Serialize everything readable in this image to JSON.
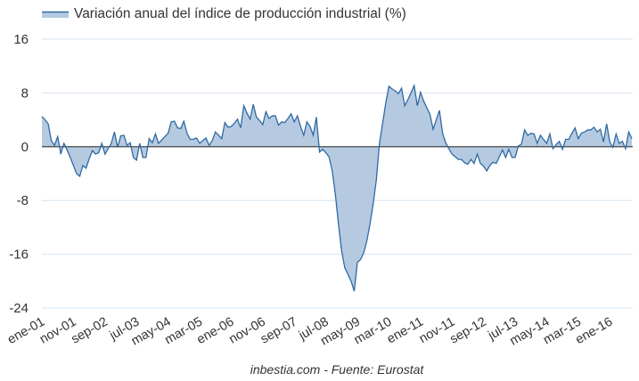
{
  "chart_data": {
    "type": "area",
    "title": "",
    "legend": {
      "label": "Variación anual del índice de producción industrial (%)",
      "position": "top-left"
    },
    "credit": "inbestia.com - Fuente: Eurostat",
    "xlabel": "",
    "ylabel": "",
    "ylim": [
      -24,
      16
    ],
    "yticks": [
      16,
      8,
      0,
      -8,
      -16,
      -24
    ],
    "grid": true,
    "start_month": "ene-01",
    "frequency": "monthly",
    "xtick_labels": [
      "ene-01",
      "nov-01",
      "sep-02",
      "jul-03",
      "may-04",
      "mar-05",
      "ene-06",
      "nov-06",
      "sep-07",
      "jul-08",
      "may-09",
      "mar-10",
      "ene-11",
      "nov-11",
      "sep-12",
      "jul-13",
      "may-14",
      "mar-15",
      "ene-16"
    ],
    "xtick_every_months": 10,
    "colors": {
      "line": "#2f6aa3",
      "fill": "#b5cae0",
      "grid": "#d5e3f0",
      "zero": "#333333"
    },
    "values": [
      4.5,
      4.0,
      3.4,
      0.9,
      0.2,
      1.5,
      -1.1,
      0.5,
      -0.5,
      -1.6,
      -2.8,
      -4.0,
      -4.4,
      -2.8,
      -3.2,
      -1.8,
      -0.6,
      -1.1,
      -0.9,
      0.5,
      -1.1,
      -0.3,
      0.5,
      2.2,
      -0.1,
      1.6,
      1.7,
      0.2,
      0.6,
      -1.6,
      -2.0,
      0.5,
      -1.6,
      -1.6,
      1.2,
      0.6,
      1.9,
      0.5,
      1.0,
      1.5,
      2.0,
      3.7,
      3.8,
      2.8,
      2.7,
      3.8,
      2.0,
      1.1,
      1.1,
      1.3,
      0.5,
      0.9,
      1.3,
      0.2,
      0.9,
      2.2,
      1.7,
      1.2,
      3.6,
      2.9,
      3.0,
      3.5,
      4.1,
      2.8,
      6.1,
      5.0,
      4.1,
      6.3,
      4.4,
      3.9,
      3.3,
      5.2,
      4.2,
      4.6,
      4.6,
      3.2,
      3.7,
      3.6,
      4.2,
      4.9,
      3.7,
      4.6,
      3.0,
      1.7,
      3.7,
      3.0,
      1.7,
      4.4,
      -0.8,
      -0.4,
      -0.9,
      -1.5,
      -3.5,
      -7.0,
      -11.5,
      -15.5,
      -18.0,
      -19.0,
      -20.0,
      -21.5,
      -17.2,
      -16.8,
      -15.8,
      -14.0,
      -11.5,
      -8.5,
      -5.0,
      0.5,
      3.5,
      6.5,
      9.0,
      8.6,
      8.3,
      7.9,
      8.7,
      6.1,
      7.0,
      8.0,
      9.1,
      6.1,
      8.1,
      6.8,
      5.8,
      4.8,
      2.6,
      4.0,
      5.4,
      2.0,
      0.6,
      -0.3,
      -1.1,
      -1.5,
      -1.9,
      -1.9,
      -2.4,
      -2.6,
      -1.9,
      -2.5,
      -1.1,
      -2.5,
      -2.9,
      -3.6,
      -2.8,
      -2.3,
      -2.5,
      -1.5,
      -0.5,
      -1.6,
      -0.4,
      -1.6,
      -1.6,
      0.1,
      0.4,
      2.5,
      1.7,
      2.0,
      1.9,
      0.5,
      1.7,
      1.1,
      0.5,
      1.9,
      -0.3,
      0.3,
      0.8,
      -0.4,
      1.1,
      1.1,
      2.0,
      2.8,
      1.2,
      2.0,
      2.2,
      2.5,
      2.5,
      2.9,
      2.2,
      2.6,
      0.7,
      3.4,
      0.7,
      -0.1,
      1.9,
      0.5,
      0.8,
      -0.3,
      2.2,
      1.2
    ]
  }
}
